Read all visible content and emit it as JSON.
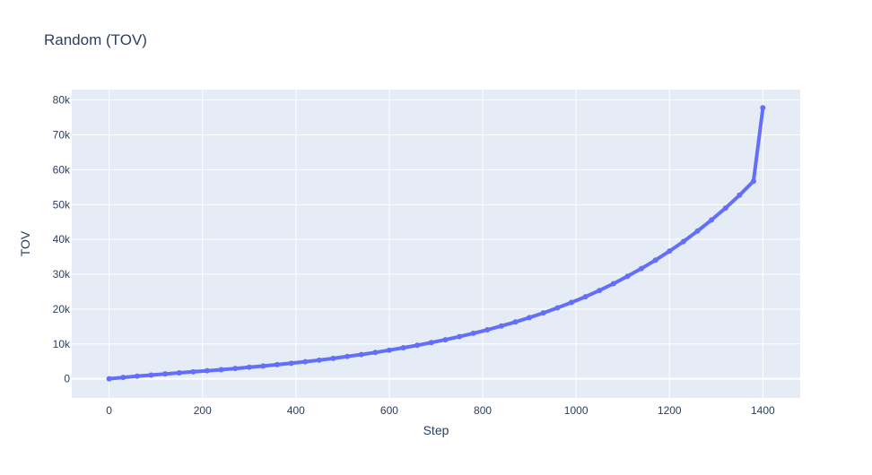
{
  "chart_data": {
    "type": "line",
    "title": "Random (TOV)",
    "xlabel": "Step",
    "ylabel": "TOV",
    "xlim": [
      -80,
      1480
    ],
    "ylim": [
      -5500,
      83000
    ],
    "x_ticks": [
      0,
      200,
      400,
      600,
      800,
      1000,
      1200,
      1400
    ],
    "x_tick_labels": [
      "0",
      "200",
      "400",
      "600",
      "800",
      "1000",
      "1200",
      "1400"
    ],
    "y_ticks": [
      0,
      10000,
      20000,
      30000,
      40000,
      50000,
      60000,
      70000,
      80000
    ],
    "y_tick_labels": [
      "0",
      "10k",
      "20k",
      "30k",
      "40k",
      "50k",
      "60k",
      "70k",
      "80k"
    ],
    "grid": true,
    "legend": "none",
    "colors": {
      "series": "#636efa",
      "plot_bg": "#e5ecf6",
      "grid": "#ffffff",
      "text": "#2a3f5f"
    },
    "series": [
      {
        "mode": "lines+markers",
        "x": [
          0,
          30,
          60,
          90,
          120,
          150,
          180,
          210,
          240,
          270,
          300,
          330,
          360,
          390,
          420,
          450,
          480,
          510,
          540,
          570,
          600,
          630,
          660,
          690,
          720,
          750,
          780,
          810,
          840,
          870,
          900,
          930,
          960,
          990,
          1020,
          1050,
          1080,
          1110,
          1140,
          1170,
          1200,
          1230,
          1260,
          1290,
          1320,
          1350,
          1380,
          1400
        ],
        "y": [
          0,
          400,
          750,
          1050,
          1400,
          1700,
          2000,
          2300,
          2600,
          2950,
          3300,
          3650,
          4050,
          4450,
          4900,
          5350,
          5850,
          6400,
          6950,
          7550,
          8200,
          8900,
          9600,
          10400,
          11200,
          12100,
          13050,
          14050,
          15150,
          16300,
          17550,
          18900,
          20350,
          21900,
          23550,
          25350,
          27300,
          29400,
          31650,
          34050,
          36650,
          39400,
          42400,
          45600,
          49000,
          52700,
          56700,
          77800
        ]
      }
    ]
  }
}
